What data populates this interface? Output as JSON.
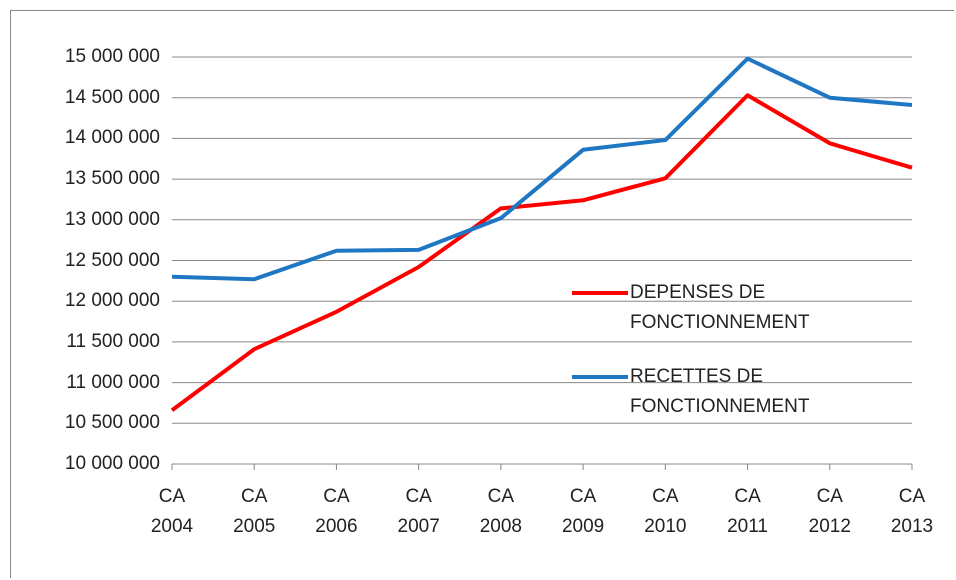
{
  "chart_data": {
    "type": "line",
    "categories": [
      "CA 2004",
      "CA 2005",
      "CA 2006",
      "CA 2007",
      "CA 2008",
      "CA 2009",
      "CA 2010",
      "CA 2011",
      "CA 2012",
      "CA 2013"
    ],
    "series": [
      {
        "name": "DEPENSES DE FONCTIONNEMENT",
        "color": "#ff0000",
        "values": [
          10660000,
          11410000,
          11870000,
          12420000,
          13140000,
          13240000,
          13510000,
          14530000,
          13940000,
          13640000
        ]
      },
      {
        "name": "RECETTES DE FONCTIONNEMENT",
        "color": "#1f77c4",
        "values": [
          12300000,
          12270000,
          12620000,
          12630000,
          13020000,
          13860000,
          13980000,
          14980000,
          14500000,
          14410000
        ]
      }
    ],
    "ylim": [
      10000000,
      15000000
    ],
    "yticks": [
      {
        "value": 10000000,
        "label": "10 000 000"
      },
      {
        "value": 10500000,
        "label": "10 500 000"
      },
      {
        "value": 11000000,
        "label": "11 000 000"
      },
      {
        "value": 11500000,
        "label": "11 500 000"
      },
      {
        "value": 12000000,
        "label": "12 000 000"
      },
      {
        "value": 12500000,
        "label": "12 500 000"
      },
      {
        "value": 13000000,
        "label": "13 000 000"
      },
      {
        "value": 13500000,
        "label": "13 500 000"
      },
      {
        "value": 14000000,
        "label": "14 000 000"
      },
      {
        "value": 14500000,
        "label": "14 500 000"
      },
      {
        "value": 15000000,
        "label": "15 000 000"
      }
    ],
    "grid": true,
    "legend": "right"
  }
}
